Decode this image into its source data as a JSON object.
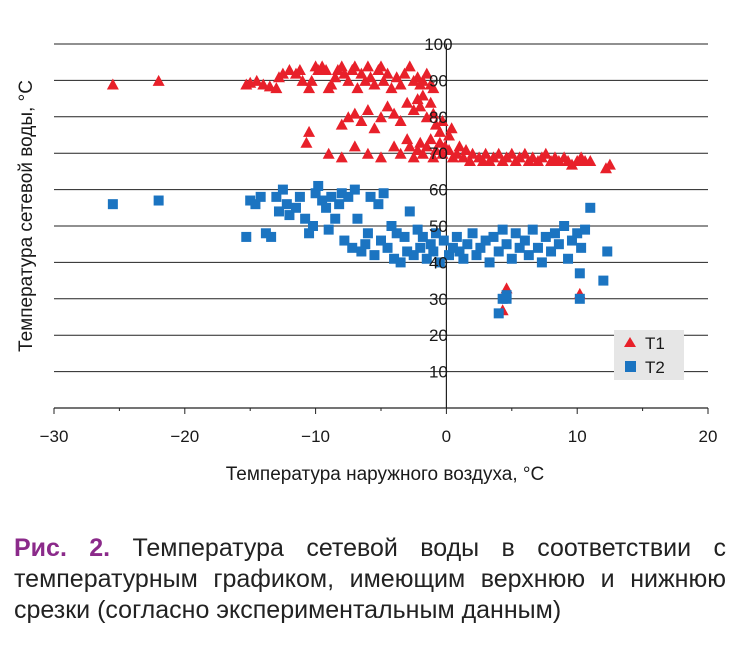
{
  "chart_data": {
    "type": "scatter",
    "xlabel": "Температура наружного воздуха, °С",
    "ylabel": "Температура сетевой воды, °С",
    "xlim": [
      -30,
      20
    ],
    "ylim": [
      0,
      100
    ],
    "x_ticks": [
      -30,
      -20,
      -10,
      0,
      10,
      20
    ],
    "x_tick_labels": [
      "−30",
      "−20",
      "−10",
      "0",
      "10",
      "20"
    ],
    "y_ticks": [
      10,
      20,
      30,
      40,
      50,
      60,
      70,
      80,
      90,
      100
    ],
    "y_tick_labels": [
      "10",
      "20",
      "30",
      "40",
      "50",
      "60",
      "70",
      "80",
      "90",
      "100"
    ],
    "grid": true,
    "legend_position": "bottom-right",
    "series": [
      {
        "name": "T1",
        "marker": "triangle",
        "color": "#e8202a",
        "points": [
          [
            -25.5,
            89
          ],
          [
            -22,
            90
          ],
          [
            -15.3,
            89
          ],
          [
            -15,
            89.5
          ],
          [
            -14.5,
            90
          ],
          [
            -14,
            89
          ],
          [
            -13.5,
            88.5
          ],
          [
            -13,
            88
          ],
          [
            -12.8,
            91
          ],
          [
            -12.5,
            92
          ],
          [
            -12,
            93
          ],
          [
            -11.5,
            92
          ],
          [
            -11.2,
            93
          ],
          [
            -11,
            90
          ],
          [
            -10.5,
            88
          ],
          [
            -10.3,
            90
          ],
          [
            -10,
            94
          ],
          [
            -9.8,
            93
          ],
          [
            -9.5,
            94
          ],
          [
            -9.2,
            93
          ],
          [
            -9,
            88
          ],
          [
            -8.8,
            89
          ],
          [
            -8.5,
            91
          ],
          [
            -8.3,
            93
          ],
          [
            -8,
            94
          ],
          [
            -7.8,
            92
          ],
          [
            -7.5,
            90
          ],
          [
            -7.2,
            93
          ],
          [
            -7,
            94
          ],
          [
            -6.8,
            88
          ],
          [
            -6.5,
            92
          ],
          [
            -6.2,
            90
          ],
          [
            -6,
            94
          ],
          [
            -5.8,
            91
          ],
          [
            -5.5,
            89
          ],
          [
            -5.2,
            93
          ],
          [
            -5,
            94
          ],
          [
            -4.8,
            90
          ],
          [
            -4.5,
            92
          ],
          [
            -4.2,
            88
          ],
          [
            -3.8,
            91
          ],
          [
            -3.5,
            89
          ],
          [
            -3.2,
            92
          ],
          [
            -2.8,
            94
          ],
          [
            -2.5,
            90
          ],
          [
            -2.2,
            91
          ],
          [
            -2,
            89
          ],
          [
            -1.8,
            90
          ],
          [
            -1.5,
            92
          ],
          [
            -1.2,
            89
          ],
          [
            -1,
            88
          ],
          [
            -10.5,
            76
          ],
          [
            -10.7,
            73
          ],
          [
            -8,
            78
          ],
          [
            -7.5,
            80
          ],
          [
            -7,
            81
          ],
          [
            -6.5,
            79
          ],
          [
            -6,
            82
          ],
          [
            -5.5,
            77
          ],
          [
            -5,
            80
          ],
          [
            -4.5,
            83
          ],
          [
            -4,
            81
          ],
          [
            -3.5,
            79
          ],
          [
            -3,
            84
          ],
          [
            -2.5,
            82
          ],
          [
            -2.2,
            85
          ],
          [
            -2,
            83
          ],
          [
            -1.8,
            86
          ],
          [
            -1.5,
            80
          ],
          [
            -1.2,
            84
          ],
          [
            -1,
            81
          ],
          [
            -0.8,
            78
          ],
          [
            -0.5,
            76
          ],
          [
            -0.3,
            79
          ],
          [
            0.2,
            75
          ],
          [
            0.4,
            77
          ],
          [
            -9,
            70
          ],
          [
            -8,
            69
          ],
          [
            -7,
            72
          ],
          [
            -6,
            70
          ],
          [
            -5,
            69
          ],
          [
            -4,
            72
          ],
          [
            -3.5,
            70
          ],
          [
            -3,
            74
          ],
          [
            -2.8,
            72
          ],
          [
            -2.5,
            69
          ],
          [
            -2.2,
            71
          ],
          [
            -2,
            73
          ],
          [
            -1.8,
            70
          ],
          [
            -1.5,
            72
          ],
          [
            -1.2,
            74
          ],
          [
            -1,
            69
          ],
          [
            -0.8,
            71
          ],
          [
            -0.5,
            73
          ],
          [
            -0.3,
            70
          ],
          [
            -0.1,
            72
          ],
          [
            0.2,
            71
          ],
          [
            0.5,
            69
          ],
          [
            0.8,
            70
          ],
          [
            1,
            72
          ],
          [
            1.3,
            69
          ],
          [
            1.5,
            71
          ],
          [
            1.8,
            68
          ],
          [
            2,
            70
          ],
          [
            2.5,
            69
          ],
          [
            2.8,
            68
          ],
          [
            3,
            70
          ],
          [
            3.3,
            68
          ],
          [
            3.6,
            69
          ],
          [
            4,
            70
          ],
          [
            4.3,
            68
          ],
          [
            4.6,
            69
          ],
          [
            5,
            70
          ],
          [
            5.3,
            68
          ],
          [
            5.6,
            69
          ],
          [
            6,
            70
          ],
          [
            6.3,
            68
          ],
          [
            6.6,
            69
          ],
          [
            7,
            68
          ],
          [
            7.3,
            69
          ],
          [
            7.6,
            70
          ],
          [
            8,
            68
          ],
          [
            8.3,
            69
          ],
          [
            8.6,
            68
          ],
          [
            9,
            69
          ],
          [
            9.3,
            68
          ],
          [
            9.6,
            67
          ],
          [
            10,
            68
          ],
          [
            10.3,
            69
          ],
          [
            10.6,
            68
          ],
          [
            11,
            68
          ],
          [
            12.2,
            66
          ],
          [
            12.5,
            67
          ],
          [
            4.3,
            27
          ],
          [
            4.6,
            33
          ],
          [
            10.2,
            31.5
          ]
        ]
      },
      {
        "name": "T2",
        "marker": "square",
        "color": "#1b74c1",
        "points": [
          [
            -25.5,
            56
          ],
          [
            -22,
            57
          ],
          [
            -15.3,
            47
          ],
          [
            -15,
            57
          ],
          [
            -14.6,
            56
          ],
          [
            -14.2,
            58
          ],
          [
            -13.8,
            48
          ],
          [
            -13.4,
            47
          ],
          [
            -13,
            58
          ],
          [
            -12.8,
            54
          ],
          [
            -12.5,
            60
          ],
          [
            -12.2,
            56
          ],
          [
            -12,
            53
          ],
          [
            -11.5,
            55
          ],
          [
            -11.2,
            58
          ],
          [
            -10.8,
            52
          ],
          [
            -10.5,
            48
          ],
          [
            -10.2,
            50
          ],
          [
            -10,
            59
          ],
          [
            -9.8,
            61
          ],
          [
            -9.5,
            57
          ],
          [
            -9.2,
            55
          ],
          [
            -9,
            49
          ],
          [
            -8.8,
            58
          ],
          [
            -8.5,
            52
          ],
          [
            -8.2,
            56
          ],
          [
            -8,
            59
          ],
          [
            -7.8,
            46
          ],
          [
            -7.5,
            58
          ],
          [
            -7.2,
            44
          ],
          [
            -7,
            60
          ],
          [
            -6.8,
            52
          ],
          [
            -6.5,
            43
          ],
          [
            -6.2,
            45
          ],
          [
            -6,
            48
          ],
          [
            -5.8,
            58
          ],
          [
            -5.5,
            42
          ],
          [
            -5.2,
            56
          ],
          [
            -5,
            46
          ],
          [
            -4.8,
            59
          ],
          [
            -4.5,
            44
          ],
          [
            -4.2,
            50
          ],
          [
            -4,
            41
          ],
          [
            -3.8,
            48
          ],
          [
            -3.5,
            40
          ],
          [
            -3.2,
            47
          ],
          [
            -3,
            43
          ],
          [
            -2.8,
            54
          ],
          [
            -2.5,
            42
          ],
          [
            -2.2,
            49
          ],
          [
            -2,
            44
          ],
          [
            -1.8,
            47
          ],
          [
            -1.5,
            41
          ],
          [
            -1.2,
            45
          ],
          [
            -1,
            43
          ],
          [
            -0.8,
            48
          ],
          [
            -0.5,
            40
          ],
          [
            -0.2,
            46
          ],
          [
            0.2,
            42
          ],
          [
            0.5,
            44
          ],
          [
            0.8,
            47
          ],
          [
            1,
            43
          ],
          [
            1.3,
            41
          ],
          [
            1.6,
            45
          ],
          [
            2,
            48
          ],
          [
            2.3,
            42
          ],
          [
            2.6,
            44
          ],
          [
            3,
            46
          ],
          [
            3.3,
            40
          ],
          [
            3.6,
            47
          ],
          [
            4,
            43
          ],
          [
            4.3,
            49
          ],
          [
            4.6,
            45
          ],
          [
            5,
            41
          ],
          [
            5.3,
            48
          ],
          [
            5.6,
            44
          ],
          [
            6,
            46
          ],
          [
            6.3,
            42
          ],
          [
            6.6,
            49
          ],
          [
            7,
            44
          ],
          [
            7.3,
            40
          ],
          [
            7.6,
            47
          ],
          [
            8,
            43
          ],
          [
            8.3,
            48
          ],
          [
            8.6,
            45
          ],
          [
            9,
            50
          ],
          [
            9.3,
            41
          ],
          [
            9.6,
            46
          ],
          [
            10,
            48
          ],
          [
            10.3,
            44
          ],
          [
            10.6,
            49
          ],
          [
            11,
            55
          ],
          [
            12,
            35
          ],
          [
            12.3,
            43
          ],
          [
            10.2,
            37
          ],
          [
            10.2,
            30
          ],
          [
            4,
            26
          ],
          [
            4.3,
            30
          ],
          [
            4.6,
            31
          ],
          [
            4.6,
            30
          ]
        ]
      }
    ]
  },
  "caption": {
    "label": "Рис. 2.",
    "text": " Температура сетевой воды в соответствии с температурным графиком, имеющим верхнюю и нижнюю срезки (согласно экспериментальным данным)"
  },
  "colors": {
    "caption_label": "#8b2a8a",
    "legend_bg": "#e6e6e6",
    "grid": "#222222"
  }
}
